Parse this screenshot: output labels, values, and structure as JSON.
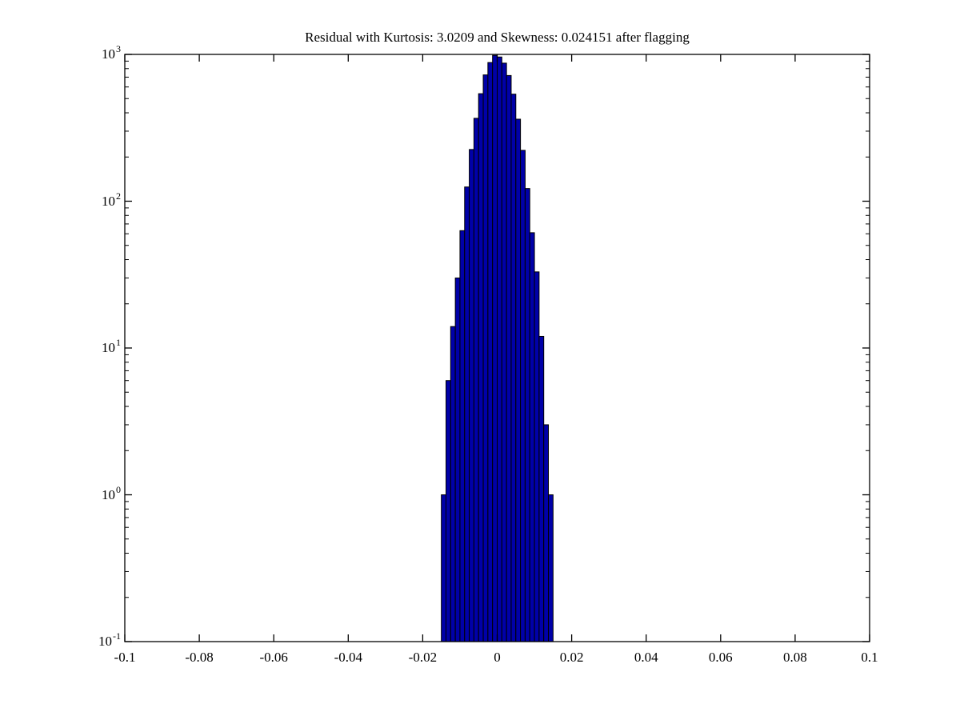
{
  "figure": {
    "background": "#ffffff",
    "title": "Residual with Kurtosis: 3.0209 and Skewness: 0.024151 after flagging"
  },
  "stats": {
    "kurtosis": "3.0209",
    "skewness": "0.024151"
  },
  "colors": {
    "bar_fill": "#0000a8",
    "bar_edge": "#000000",
    "axis": "#000000",
    "text": "#000000"
  },
  "chart_data": {
    "type": "bar",
    "title": "Residual with Kurtosis: 3.0209 and Skewness: 0.024151 after flagging",
    "xlabel": "",
    "ylabel": "",
    "xlim": [
      -0.1,
      0.1
    ],
    "yscale": "log",
    "ylim": [
      0.1,
      1000
    ],
    "grid": false,
    "legend": null,
    "x_tick_values": [
      -0.1,
      -0.08,
      -0.06,
      -0.04,
      -0.02,
      0,
      0.02,
      0.04,
      0.06,
      0.08,
      0.1
    ],
    "x_tick_labels": [
      "-0.1",
      "-0.08",
      "-0.06",
      "-0.04",
      "-0.02",
      "0",
      "0.02",
      "0.04",
      "0.06",
      "0.08",
      "0.1"
    ],
    "y_tick_base": "10",
    "y_tick_exponents": [
      "3",
      "2",
      "1",
      "0",
      "-1"
    ],
    "y_minor_ticks": true,
    "bins": {
      "start": -0.015,
      "width": 0.00125,
      "count": 24
    },
    "counts": [
      1,
      6,
      14,
      30,
      63,
      125,
      225,
      367,
      540,
      725,
      880,
      985,
      960,
      872,
      718,
      536,
      362,
      222,
      122,
      61,
      33,
      12,
      3,
      1
    ]
  }
}
